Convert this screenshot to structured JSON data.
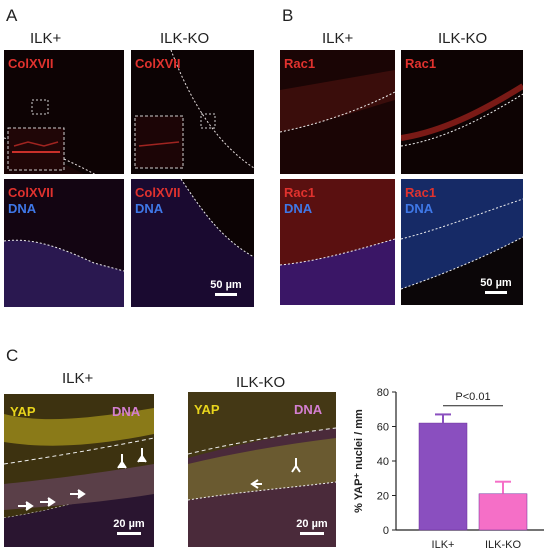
{
  "panels": {
    "a": "A",
    "b": "B",
    "c": "C"
  },
  "panel_a": {
    "col_titles": [
      "ILK+",
      "ILK-KO"
    ],
    "marker_top": "ColXVII",
    "marker_bottom": "ColXVII",
    "dna_label": "DNA",
    "scale_bar": "50 µm"
  },
  "panel_b": {
    "col_titles": [
      "ILK+",
      "ILK-KO"
    ],
    "marker_top": "Rac1",
    "marker_bottom": "Rac1",
    "dna_label": "DNA",
    "scale_bar": "50 µm"
  },
  "panel_c": {
    "col_titles": [
      "ILK+",
      "ILK-KO"
    ],
    "yap_label": "YAP",
    "dna_label": "DNA",
    "scale_bar": "20 µm"
  },
  "colors": {
    "red": "#e0322e",
    "blue": "#3f78e8",
    "yellow": "#e9d51c",
    "purple_bar": "#8a4fbf",
    "pink_bar": "#f56fc7"
  },
  "chart_data": {
    "type": "bar",
    "categories": [
      "ILK+",
      "ILK-KO"
    ],
    "values": [
      62,
      21
    ],
    "errors": [
      5,
      7
    ],
    "bar_colors": [
      "#8a4fbf",
      "#f56fc7"
    ],
    "ylabel": "% YAP⁺ nuclei / mm",
    "ylim": [
      0,
      80
    ],
    "yticks": [
      0,
      20,
      40,
      60,
      80
    ],
    "annotation": "P<0.01"
  }
}
